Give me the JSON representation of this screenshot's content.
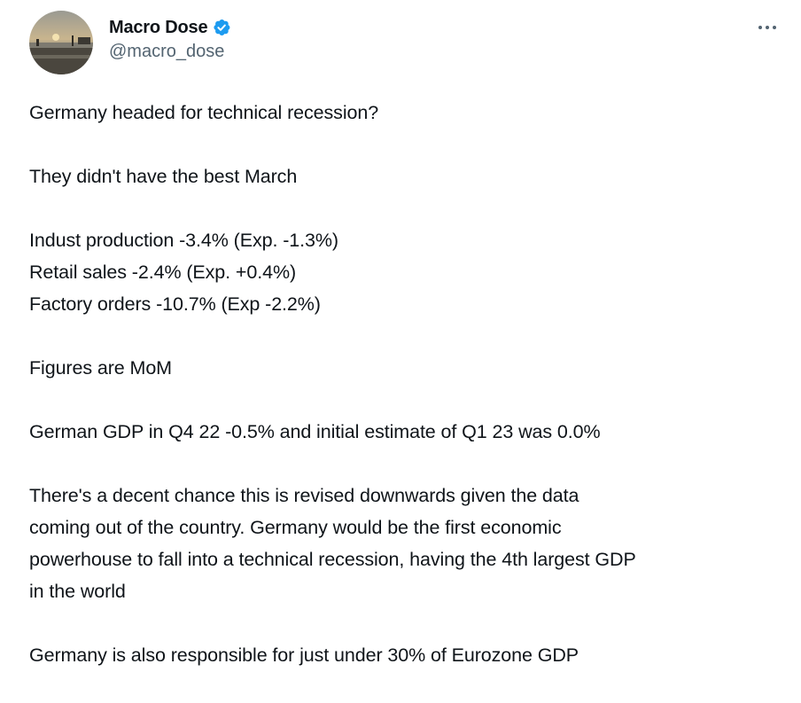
{
  "author": {
    "display_name": "Macro Dose",
    "handle": "@macro_dose",
    "verified": true,
    "verified_color": "#1d9bf0"
  },
  "more_icon": "more-horizontal-icon",
  "tweet": {
    "paragraphs": [
      {
        "lines": [
          "Germany headed for technical recession?"
        ]
      },
      {
        "lines": [
          "They didn't have the best March"
        ]
      },
      {
        "lines": [
          "Indust production -3.4% (Exp. -1.3%)",
          "Retail sales -2.4% (Exp. +0.4%)",
          "Factory orders -10.7% (Exp -2.2%)"
        ]
      },
      {
        "lines": [
          "Figures are MoM"
        ]
      },
      {
        "lines": [
          "German GDP in Q4 22 -0.5% and initial estimate of Q1 23 was 0.0%"
        ]
      },
      {
        "lines": [
          "There's a decent chance this is revised downwards given the data",
          "coming out of the country. Germany would be the first economic",
          "powerhouse to fall into a technical recession, having the 4th largest GDP",
          "in the world"
        ]
      },
      {
        "lines": [
          "Germany is also responsible for just under 30% of Eurozone GDP"
        ]
      }
    ]
  }
}
